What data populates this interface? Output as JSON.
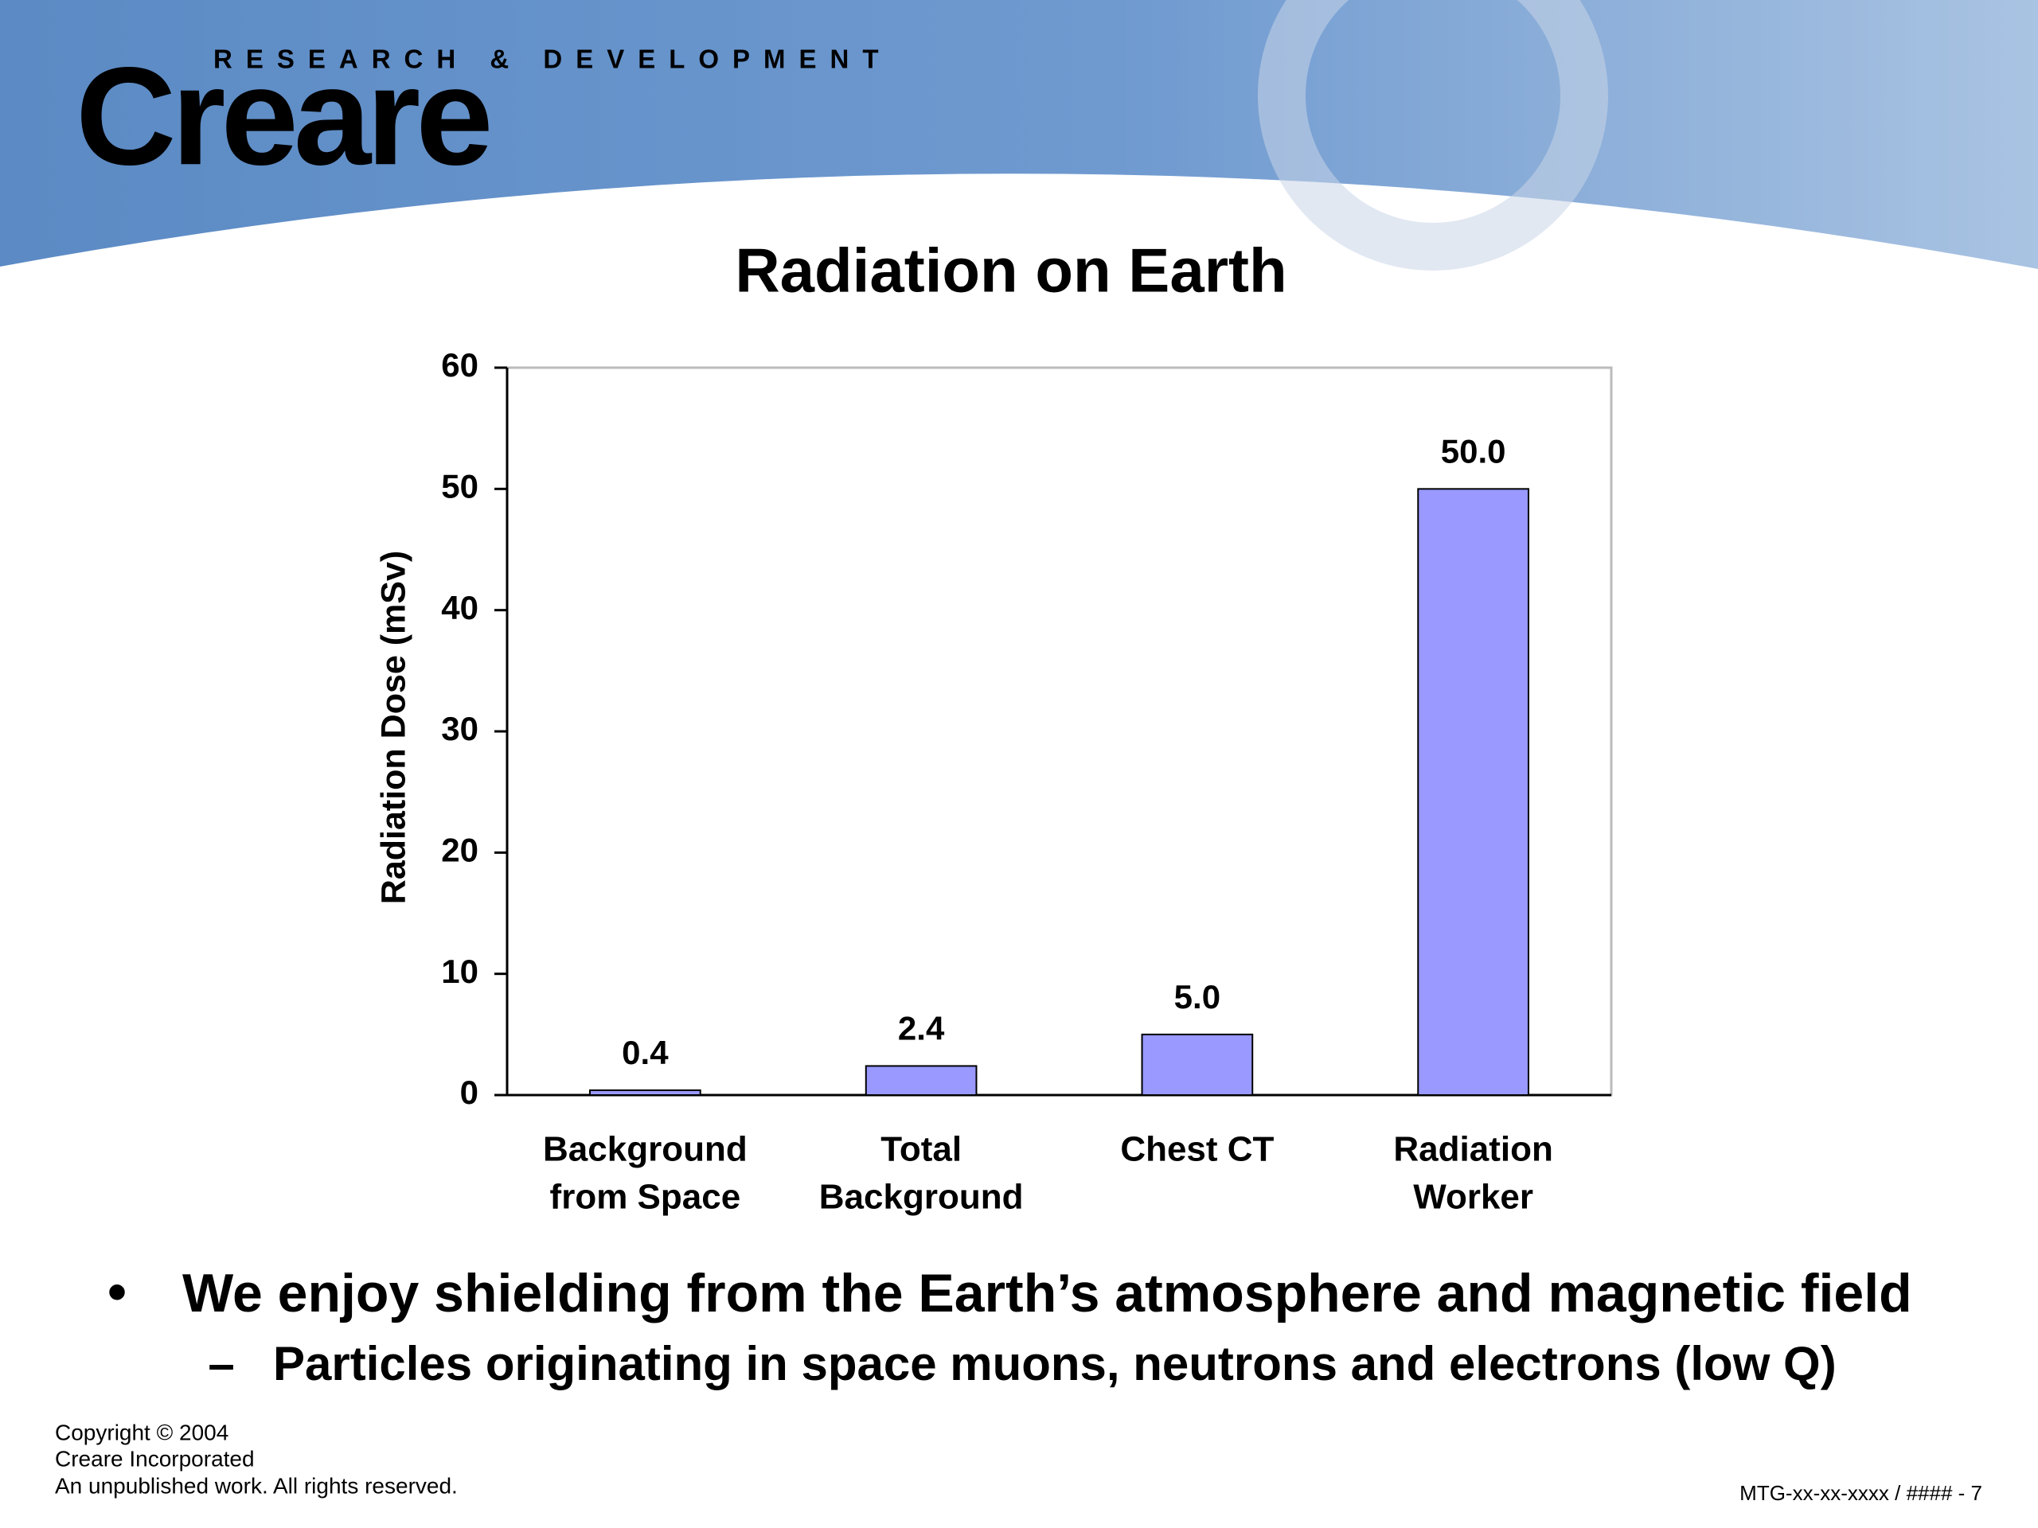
{
  "header": {
    "brand": "Creare",
    "tagline": "RESEARCH & DEVELOPMENT"
  },
  "chart_data": {
    "type": "bar",
    "title": "Radiation on Earth",
    "y_label": "Radiation Dose (mSv)",
    "categories": [
      [
        "Background",
        "from Space"
      ],
      [
        "Total",
        "Background"
      ],
      [
        "Chest CT"
      ],
      [
        "Radiation",
        "Worker"
      ]
    ],
    "values": [
      0.4,
      2.4,
      5.0,
      50.0
    ],
    "value_labels": [
      "0.4",
      "2.4",
      "5.0",
      "50.0"
    ],
    "color": "#9999ff",
    "ylim": [
      0,
      60
    ],
    "yticks": [
      0,
      10,
      20,
      30,
      40,
      50,
      60
    ],
    "grid": false
  },
  "bullets": [
    {
      "text": "We enjoy shielding from the Earth’s atmosphere and magnetic field",
      "sub": [
        "Particles originating in space muons, neutrons and electrons (low Q)"
      ]
    }
  ],
  "footer": {
    "copyright": [
      "Copyright © 2004",
      "Creare Incorporated",
      "An unpublished work.  All rights reserved."
    ],
    "code": "MTG-xx-xx-xxxx / #### - 7"
  }
}
